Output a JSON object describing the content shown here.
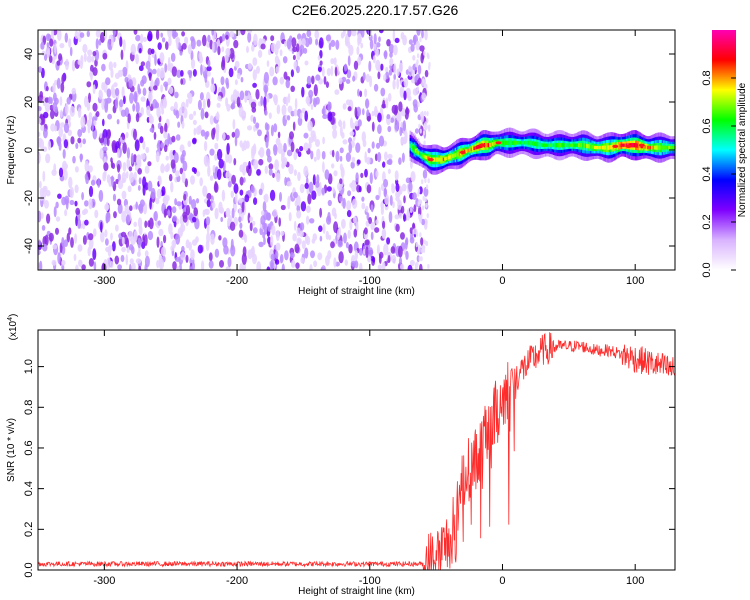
{
  "title": "C2E6.2025.220.17.57.G26",
  "chart_data": [
    {
      "type": "heatmap",
      "xlabel": "Height of straight line (km)",
      "ylabel": "Frequency (Hz)",
      "xlim": [
        -350,
        130
      ],
      "ylim": [
        -50,
        50
      ],
      "xticks": [
        -300,
        -200,
        -100,
        0,
        100
      ],
      "yticks": [
        -40,
        -20,
        0,
        20,
        40
      ],
      "colorbar": {
        "label": "Normalized spectral amplitude",
        "range": [
          0,
          1
        ],
        "ticks": [
          "0.0",
          "0.2",
          "0.4",
          "0.6",
          "0.8"
        ],
        "colors": [
          "#ffffff",
          "#d9b3ff",
          "#7f00ff",
          "#0000ff",
          "#00ffff",
          "#00ff00",
          "#ffff00",
          "#ff0000",
          "#ff00b4"
        ]
      },
      "noise_region_x": [
        -350,
        -65
      ],
      "ridge": {
        "x": [
          -70,
          -66,
          -62,
          -58,
          -54,
          -50,
          -45,
          -40,
          -35,
          -30,
          -25,
          -20,
          -15,
          -10,
          -5,
          0,
          10,
          20,
          30,
          40,
          50,
          60,
          70,
          80,
          90,
          100,
          110,
          120,
          130
        ],
        "freq": [
          2,
          0,
          -2,
          -3,
          -4,
          -4,
          -4,
          -3,
          -2,
          -1,
          0,
          1,
          2,
          2,
          3,
          3,
          3,
          3,
          2,
          2,
          2,
          2,
          1,
          1,
          2,
          2,
          1,
          1,
          1
        ],
        "amp": [
          0.55,
          0.7,
          0.6,
          0.75,
          0.8,
          0.7,
          0.8,
          0.75,
          0.7,
          0.8,
          0.75,
          0.85,
          0.85,
          0.8,
          0.7,
          0.65,
          0.6,
          0.6,
          0.6,
          0.6,
          0.62,
          0.65,
          0.7,
          0.75,
          0.9,
          0.9,
          0.8,
          0.7,
          0.65
        ]
      }
    },
    {
      "type": "line",
      "xlabel": "Height of straight line (km)",
      "ylabel": "SNR (10 * v/v)",
      "scale_label": "(x10",
      "scale_exp": "4",
      "scale_close": ")",
      "xlim": [
        -350,
        130
      ],
      "ylim": [
        0,
        1.18
      ],
      "xticks": [
        -300,
        -200,
        -100,
        0,
        100
      ],
      "yticks": [
        "0.0",
        "0.2",
        "0.4",
        "0.6",
        "0.8",
        "1.0"
      ],
      "ytick_values": [
        0,
        0.2,
        0.4,
        0.6,
        0.8,
        1.0
      ],
      "color": "#ff2a2a",
      "series": [
        {
          "x": [
            -350,
            -300,
            -250,
            -200,
            -150,
            -100,
            -60,
            -50,
            -45,
            -40,
            -35,
            -30,
            -25,
            -20,
            -15,
            -10,
            -5,
            0,
            10,
            20,
            30,
            40,
            50,
            60,
            70,
            80,
            90,
            100,
            110,
            120,
            130
          ],
          "y": [
            0.03,
            0.03,
            0.03,
            0.03,
            0.03,
            0.03,
            0.03,
            0.05,
            0.1,
            0.15,
            0.25,
            0.45,
            0.5,
            0.55,
            0.62,
            0.7,
            0.78,
            0.85,
            0.95,
            1.02,
            1.08,
            1.1,
            1.1,
            1.1,
            1.08,
            1.08,
            1.06,
            1.04,
            1.02,
            1.0,
            0.98
          ]
        }
      ]
    }
  ]
}
